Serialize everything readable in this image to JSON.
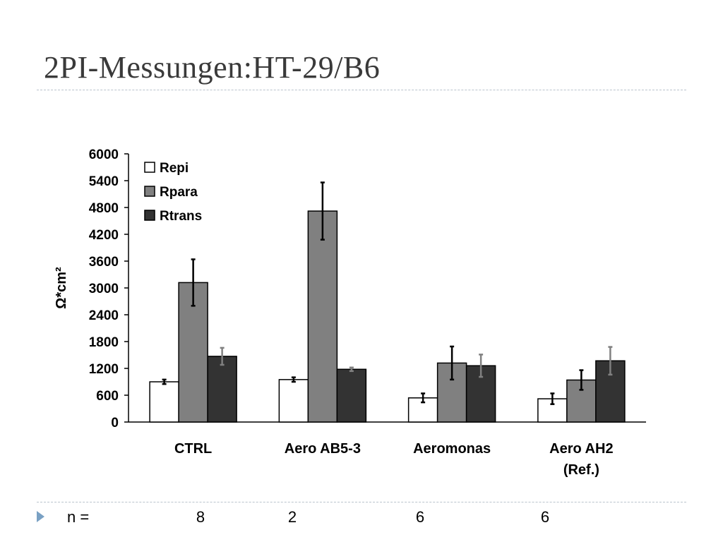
{
  "slide": {
    "title": "2PI-Messungen:HT-29/B6",
    "n_label": "n =",
    "n_values": [
      "8",
      "2",
      "6",
      "6"
    ]
  },
  "chart_data": {
    "type": "bar",
    "title": "",
    "xlabel": "",
    "ylabel": "Ω*cm²",
    "ylim": [
      0,
      6000
    ],
    "yticks": [
      0,
      600,
      1200,
      1800,
      2400,
      3000,
      3600,
      4200,
      4800,
      5400,
      6000
    ],
    "categories": [
      [
        "CTRL"
      ],
      [
        "Aero AB5-3"
      ],
      [
        "Aeromonas"
      ],
      [
        "Aero AH2",
        "(Ref.)"
      ]
    ],
    "legend_position": "top-left",
    "grid": false,
    "series": [
      {
        "name": "Repi",
        "color": "#ffffff",
        "error_color": "#000000",
        "values": [
          900,
          950,
          540,
          520
        ],
        "errors": [
          50,
          50,
          100,
          120
        ]
      },
      {
        "name": "Rpara",
        "color": "#808080",
        "error_color": "#000000",
        "values": [
          3120,
          4720,
          1320,
          940
        ],
        "errors": [
          520,
          640,
          370,
          220
        ]
      },
      {
        "name": "Rtrans",
        "color": "#333333",
        "error_color": "#808080",
        "values": [
          1470,
          1180,
          1260,
          1370
        ],
        "errors": [
          190,
          40,
          250,
          310
        ]
      }
    ]
  }
}
